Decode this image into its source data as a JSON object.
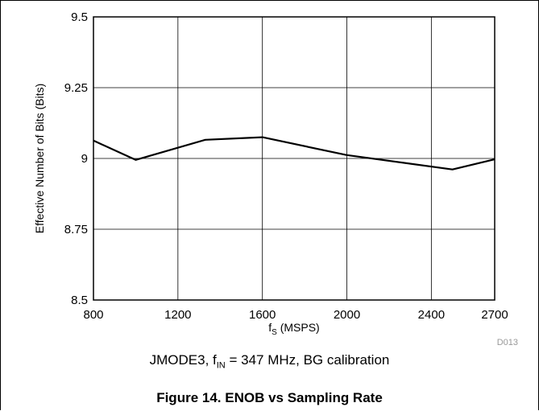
{
  "chart_data": {
    "type": "line",
    "xlabel_main": "f",
    "xlabel_sub": "S",
    "xlabel_rest": " (MSPS)",
    "ylabel": "Effective Number of Bits (Bits)",
    "xlim": [
      800,
      2700
    ],
    "ylim": [
      8.5,
      9.5
    ],
    "x_ticks": [
      800,
      1200,
      1600,
      2000,
      2400,
      2700
    ],
    "y_ticks": [
      8.5,
      8.75,
      9,
      9.25,
      9.5
    ],
    "x_tick_labels": [
      "800",
      "1200",
      "1600",
      "2000",
      "2400",
      "2700"
    ],
    "y_tick_labels": [
      "8.5",
      "8.75",
      "9",
      "9.25",
      "9.5"
    ],
    "grid": true,
    "series": [
      {
        "x": [
          800,
          1000,
          1330,
          1600,
          2000,
          2500,
          2700
        ],
        "y": [
          9.063,
          8.995,
          9.066,
          9.075,
          9.012,
          8.961,
          8.997
        ],
        "color": "#000000"
      }
    ],
    "chart_id": "D013"
  },
  "caption": {
    "prefix": "JMODE3, f",
    "sub": "IN",
    "suffix": " = 347 MHz, BG calibration"
  },
  "figure_title": "Figure 14. ENOB vs Sampling Rate"
}
